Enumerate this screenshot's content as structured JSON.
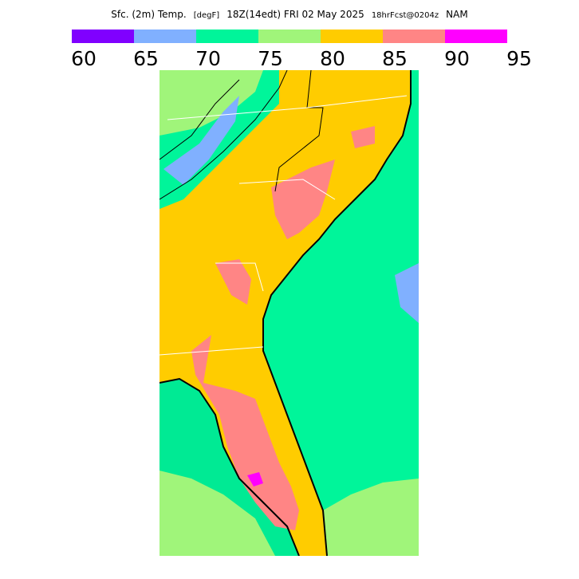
{
  "header": {
    "title_parts": [
      "Sfc. (2m) Temp.",
      "[degF]",
      "18Z(14edt) FRI 02 May 2025",
      "18hrFcst@0204z",
      "NAM"
    ]
  },
  "legend": {
    "colors": [
      "#8000ff",
      "#80b0ff",
      "#00f59a",
      "#a0f57a",
      "#ffcc00",
      "#ff8585",
      "#ff00ff"
    ],
    "labels": [
      "60",
      "65",
      "70",
      "75",
      "80",
      "85",
      "90",
      "95"
    ]
  }
}
